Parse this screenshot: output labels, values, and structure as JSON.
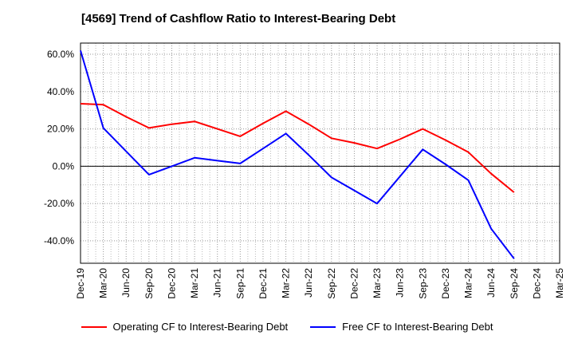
{
  "chart_data": {
    "type": "line",
    "title": "[4569]  Trend of Cashflow Ratio to Interest-Bearing Debt",
    "xlabel": "",
    "ylabel": "",
    "categories": [
      "Dec-19",
      "Mar-20",
      "Jun-20",
      "Sep-20",
      "Dec-20",
      "Mar-21",
      "Jun-21",
      "Sep-21",
      "Dec-21",
      "Mar-22",
      "Jun-22",
      "Sep-22",
      "Dec-22",
      "Mar-23",
      "Jun-23",
      "Sep-23",
      "Dec-23",
      "Mar-24",
      "Jun-24",
      "Sep-24",
      "Dec-24",
      "Mar-25"
    ],
    "ylim": [
      -52,
      66
    ],
    "yticks": [
      60,
      40,
      20,
      0,
      -20,
      -40
    ],
    "ytick_labels": [
      "60.0%",
      "40.0%",
      "20.0%",
      "0.0%",
      "-20.0%",
      "-40.0%"
    ],
    "grid": true,
    "legend_position": "bottom",
    "series": [
      {
        "name": "Operating CF to Interest-Bearing Debt",
        "color": "#ff0000",
        "values": [
          33.5,
          33.0,
          26.5,
          20.5,
          22.5,
          24.0,
          20.0,
          16.0,
          23.0,
          29.5,
          22.5,
          15.0,
          12.5,
          9.5,
          14.5,
          20.0,
          14.0,
          7.5,
          -4.0,
          -14.0,
          null,
          null
        ]
      },
      {
        "name": "Free CF to Interest-Bearing Debt",
        "color": "#0000ff",
        "values": [
          62.0,
          20.5,
          8.0,
          -4.5,
          0.0,
          4.5,
          3.0,
          1.5,
          9.5,
          17.5,
          6.0,
          -6.0,
          -13.0,
          -20.0,
          -5.5,
          9.0,
          1.0,
          -7.5,
          -33.5,
          -49.5,
          null,
          null
        ]
      }
    ]
  }
}
